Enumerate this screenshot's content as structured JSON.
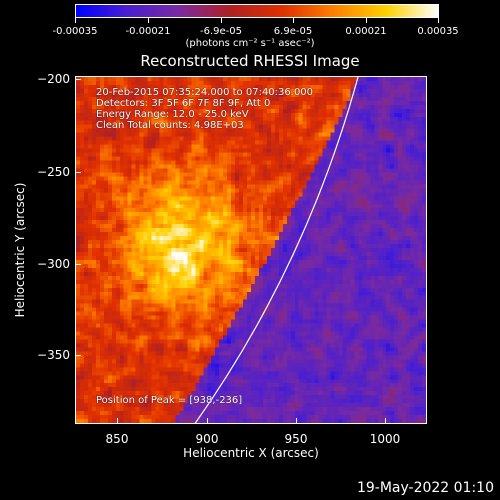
{
  "colorbar": {
    "ticks": [
      "-0.00035",
      "-0.00021",
      "-6.9e-05",
      "6.9e-05",
      "0.00021",
      "0.00035"
    ],
    "units": "(photons cm⁻² s⁻¹ asec⁻²)",
    "colors": [
      "#0000ff",
      "#4a1fd0",
      "#7a2aa0",
      "#b02020",
      "#e03000",
      "#ff8000",
      "#ffd000",
      "#ffffff"
    ]
  },
  "plot": {
    "title": "Reconstructed RHESSI Image",
    "xlabel": "Heliocentric X (arcsec)",
    "ylabel": "Heliocentric Y (arcsec)",
    "xticks": [
      "850",
      "900",
      "950",
      "1000"
    ],
    "yticks": [
      "−200",
      "−250",
      "−300",
      "−350"
    ],
    "annotations": {
      "time_range": "20-Feb-2015 07:35:24.000 to 07:40:36.000",
      "detectors": "Detectors: 3F 5F 6F 7F 8F 9F, Att 0",
      "energy": "Energy Range: 12.0 - 25.0 keV",
      "method": "Clean     Total counts: 4.98E+03",
      "peak": "Position of Peak = [938,-236]"
    }
  },
  "footer": {
    "date": "19-May-2022 01:10"
  }
}
